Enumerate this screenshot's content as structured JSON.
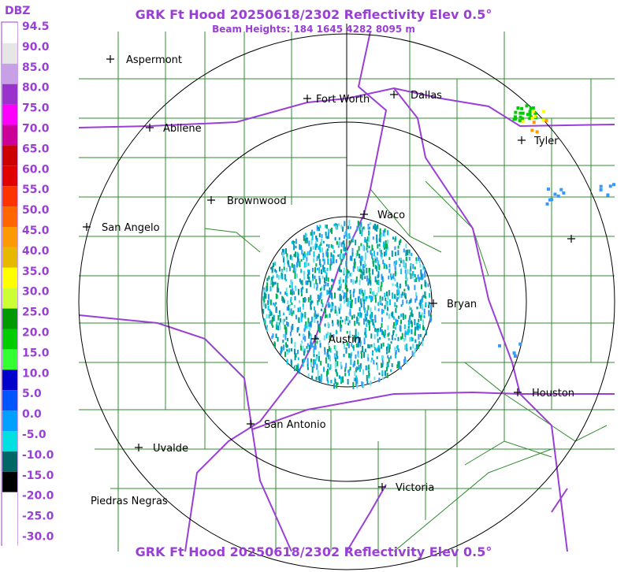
{
  "header": {
    "title": "GRK Ft Hood 20250618/2302 Reflectivity Elev 0.5°",
    "subtitle": "Beam Heights: 184 1645 4282 8095 m"
  },
  "footer": {
    "title": "GRK Ft Hood 20250618/2302 Reflectivity Elev 0.5°"
  },
  "legend": {
    "unit": "DBZ",
    "labels": [
      "94.5",
      "90.0",
      "85.0",
      "80.0",
      "75.0",
      "70.0",
      "65.0",
      "60.0",
      "55.0",
      "50.0",
      "45.0",
      "40.0",
      "35.0",
      "30.0",
      "25.0",
      "20.0",
      "15.0",
      "10.0",
      "5.0",
      "0.0",
      "-5.0",
      "-10.0",
      "-15.0",
      "-20.0",
      "-25.0",
      "-30.0"
    ]
  },
  "cities": [
    "Aspermont",
    "Fort Worth",
    "Dallas",
    "Abilene",
    "Tyler",
    "Brownwood",
    "Waco",
    "San Angelo",
    "Bryan",
    "Austin",
    "Houston",
    "San Antonio",
    "Uvalde",
    "Victoria",
    "Piedras Negras"
  ]
}
